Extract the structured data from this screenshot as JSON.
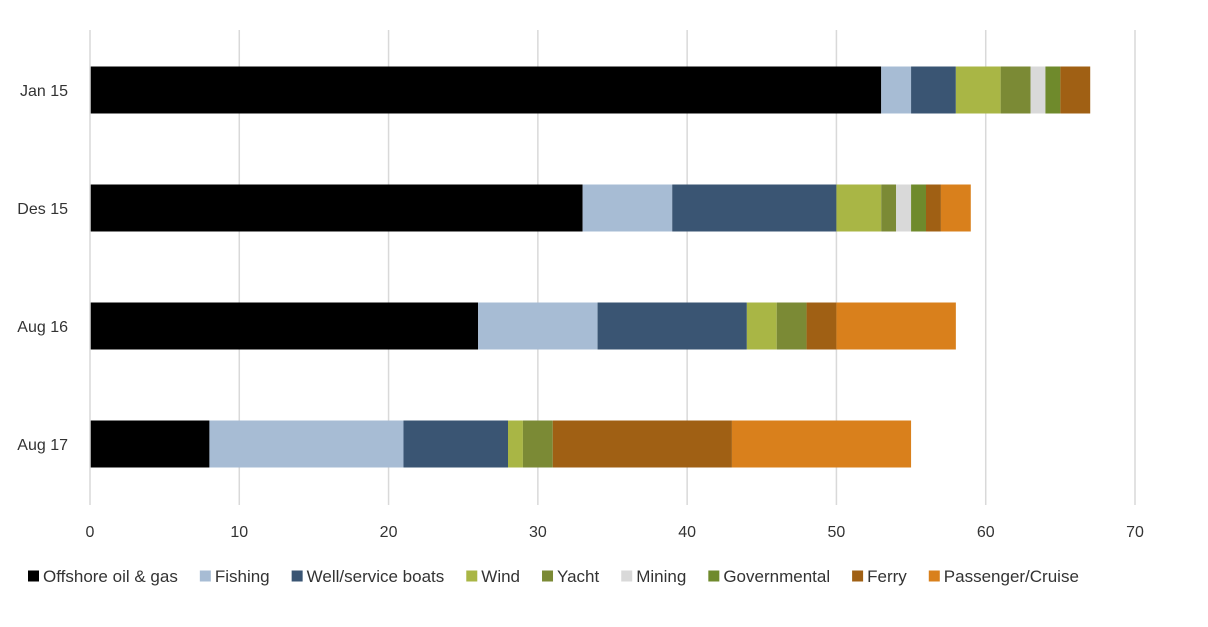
{
  "chart_data": {
    "type": "bar",
    "orientation": "horizontal",
    "stacked": true,
    "title": "",
    "xlabel": "",
    "ylabel": "",
    "xlim": [
      0,
      70
    ],
    "x_ticks": [
      0,
      10,
      20,
      30,
      40,
      50,
      60,
      70
    ],
    "grid": "vertical",
    "legend_position": "bottom",
    "categories": [
      "Jan 15",
      "Des 15",
      "Aug 16",
      "Aug 17"
    ],
    "series": [
      {
        "name": "Offshore oil & gas",
        "color": "#000000",
        "values": [
          53,
          33,
          26,
          8
        ]
      },
      {
        "name": "Fishing",
        "color": "#a7bcd4",
        "values": [
          2,
          6,
          8,
          13
        ]
      },
      {
        "name": "Well/service boats",
        "color": "#3a5573",
        "values": [
          3,
          11,
          10,
          7
        ]
      },
      {
        "name": "Wind",
        "color": "#a9b645",
        "values": [
          3,
          3,
          2,
          1
        ]
      },
      {
        "name": "Yacht",
        "color": "#7b8a35",
        "values": [
          2,
          1,
          2,
          2
        ]
      },
      {
        "name": "Mining",
        "color": "#d9d9d9",
        "values": [
          1,
          1,
          0,
          0
        ]
      },
      {
        "name": "Governmental",
        "color": "#6f8a2c",
        "values": [
          1,
          1,
          0,
          0
        ]
      },
      {
        "name": "Ferry",
        "color": "#a06014",
        "values": [
          2,
          1,
          2,
          12
        ]
      },
      {
        "name": "Passenger/Cruise",
        "color": "#d9801c",
        "values": [
          0,
          2,
          8,
          12
        ]
      }
    ]
  }
}
